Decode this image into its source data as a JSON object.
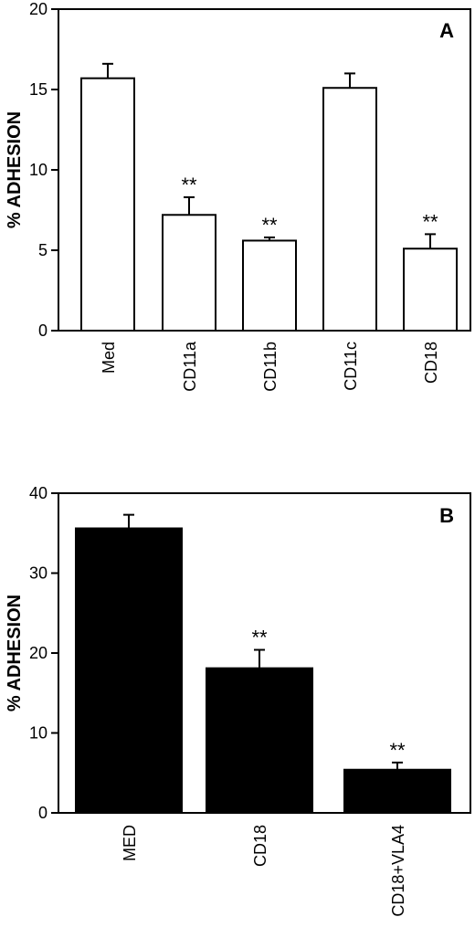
{
  "chart_data": [
    {
      "type": "bar",
      "panel_label": "A",
      "ylabel": "% ADHESION",
      "xlabel": "",
      "ylim": [
        0,
        20
      ],
      "yticks": [
        0,
        5,
        10,
        15,
        20
      ],
      "categories": [
        "Med",
        "CD11a",
        "CD11b",
        "CD11c",
        "CD18"
      ],
      "values": [
        15.7,
        7.2,
        5.6,
        15.1,
        5.1
      ],
      "errors": [
        0.9,
        1.1,
        0.2,
        0.9,
        0.9
      ],
      "significance": [
        "",
        "**",
        "**",
        "",
        "**"
      ],
      "bar_color": "#ffffff",
      "grid": false
    },
    {
      "type": "bar",
      "panel_label": "B",
      "ylabel": "% ADHESION",
      "xlabel": "",
      "ylim": [
        0,
        40
      ],
      "yticks": [
        0,
        10,
        20,
        30,
        40
      ],
      "categories": [
        "MED",
        "CD18",
        "CD18+VLA4"
      ],
      "values": [
        35.6,
        18.1,
        5.4
      ],
      "errors": [
        1.7,
        2.3,
        0.9
      ],
      "significance": [
        "",
        "**",
        "**"
      ],
      "bar_color": "#000000",
      "grid": false
    }
  ]
}
